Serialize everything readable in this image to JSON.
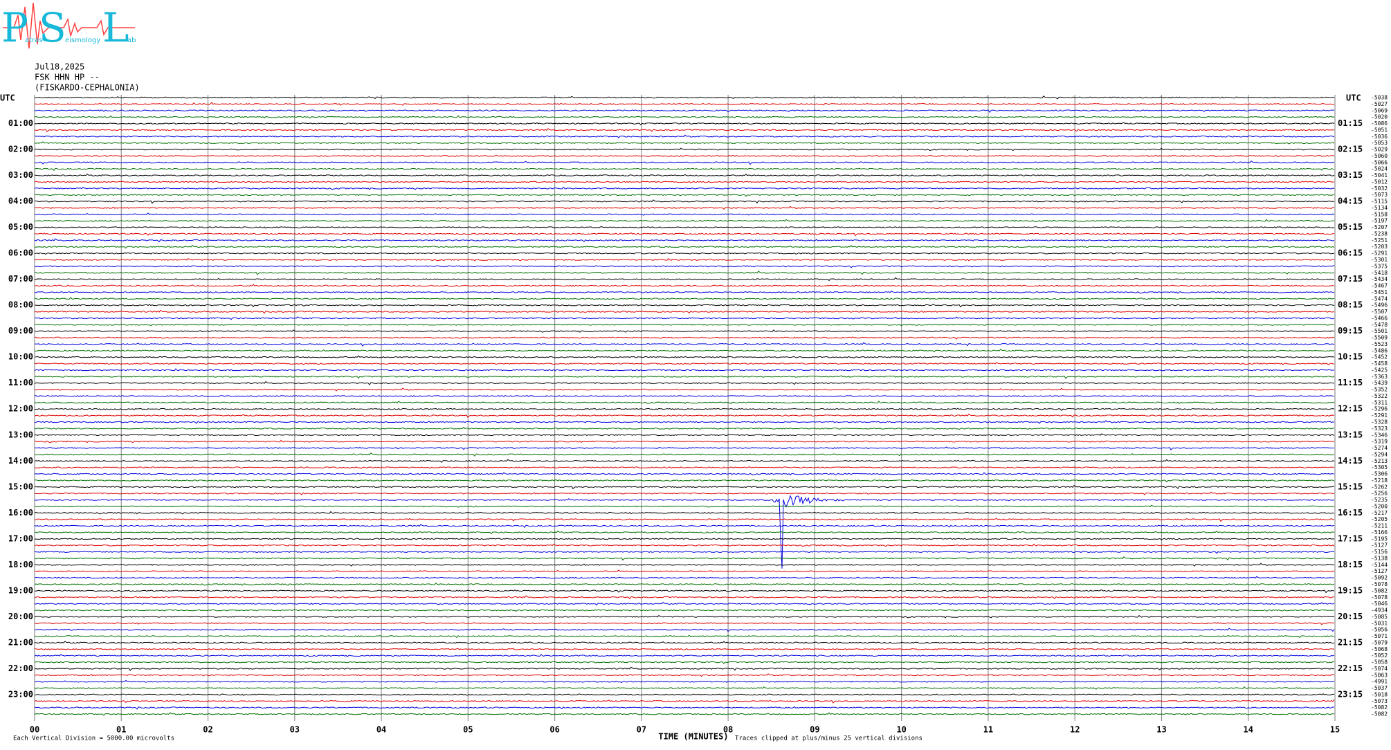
{
  "logo": {
    "letters": [
      "P",
      "S",
      "L"
    ],
    "words": [
      "atras",
      "eismology",
      "ab"
    ]
  },
  "header": {
    "date": "Jul18,2025",
    "station": "FSK HHN HP --",
    "location": "(FISKARDO-CEPHALONIA)"
  },
  "utc_label": "UTC",
  "left_hours": [
    "01:00",
    "02:00",
    "03:00",
    "04:00",
    "05:00",
    "06:00",
    "07:00",
    "08:00",
    "09:00",
    "10:00",
    "11:00",
    "12:00",
    "13:00",
    "14:00",
    "15:00",
    "16:00",
    "17:00",
    "18:00",
    "19:00",
    "20:00",
    "21:00",
    "22:00",
    "23:00"
  ],
  "right_hours": [
    "01:15",
    "02:15",
    "03:15",
    "04:15",
    "05:15",
    "06:15",
    "07:15",
    "08:15",
    "09:15",
    "10:15",
    "11:15",
    "12:15",
    "13:15",
    "14:15",
    "15:15",
    "16:15",
    "17:15",
    "18:15",
    "19:15",
    "20:15",
    "21:15",
    "22:15",
    "23:15"
  ],
  "trace_offsets": [
    "-5038",
    "-5027",
    "-5069",
    "-5020",
    "-5086",
    "-5051",
    "-5036",
    "-5053",
    "-5029",
    "-5060",
    "-5066",
    "-5024",
    "-5041",
    "-5012",
    "-5032",
    "-5073",
    "-5115",
    "-5134",
    "-5158",
    "-5197",
    "-5207",
    "-5238",
    "-5251",
    "-5203",
    "-5291",
    "-5301",
    "-5375",
    "-5418",
    "-5434",
    "-5467",
    "-5451",
    "-5474",
    "-5496",
    "-5507",
    "-5466",
    "-5478",
    "-5501",
    "-5509",
    "-5523",
    "-5486",
    "-5452",
    "-5458",
    "-5425",
    "-5363",
    "-5439",
    "-5352",
    "-5322",
    "-5311",
    "-5296",
    "-5291",
    "-5328",
    "-5323",
    "-5346",
    "-5319",
    "-5274",
    "-5294",
    "-5213",
    "-5305",
    "-5306",
    "-5218",
    "-5262",
    "-5256",
    "-5235",
    "-5200",
    "-5217",
    "-5205",
    "-5211",
    "-5166",
    "-5195",
    "-5127",
    "-5156",
    "-5138",
    "-5144",
    "-5127",
    "-5092",
    "-5078",
    "-5082",
    "-5078",
    "-5046",
    "-4934",
    "-5085",
    "-5031",
    "-5056",
    "-5071",
    "-5079",
    "-5068",
    "-5052",
    "-5058",
    "-5074",
    "-5063",
    "-4991",
    "-5037",
    "-5018",
    "-5073",
    "-5082",
    "-5082"
  ],
  "trace_colors": [
    "#000000",
    "#e00000",
    "#0000e0",
    "#007000"
  ],
  "minutes": [
    "00",
    "01",
    "02",
    "03",
    "04",
    "05",
    "06",
    "07",
    "08",
    "09",
    "10",
    "11",
    "12",
    "13",
    "14",
    "15"
  ],
  "x_axis_title": "TIME (MINUTES)",
  "scale_note": "Each Vertical Division = 5000.00 microvolts",
  "clip_note": "Traces clipped at plus/minus 25 vertical divisions"
}
